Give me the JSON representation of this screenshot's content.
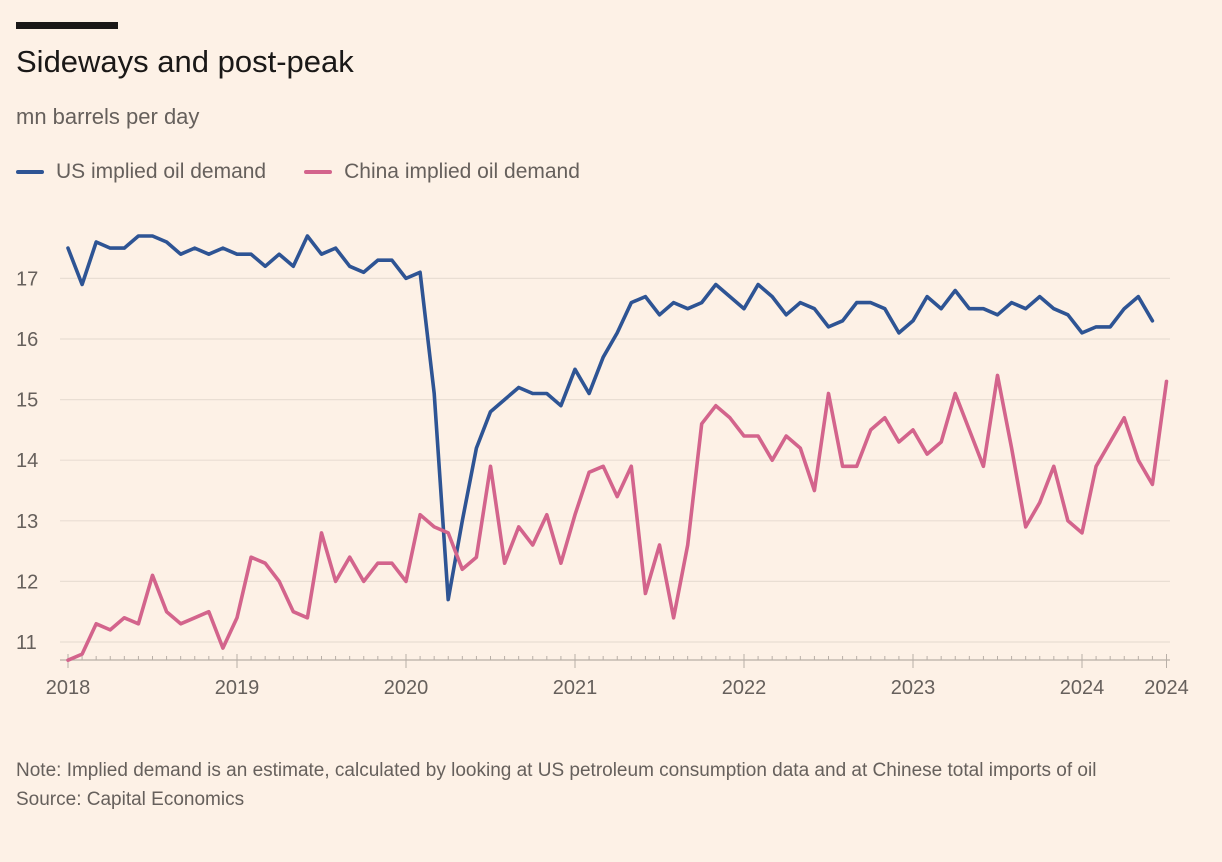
{
  "title": "Sideways and post-peak",
  "subtitle": "mn barrels per day",
  "legend": [
    {
      "name": "US implied oil demand",
      "color": "#2E5494"
    },
    {
      "name": "China implied oil demand",
      "color": "#D3648C"
    }
  ],
  "note": "Note: Implied demand is an estimate, calculated by looking at US petroleum consumption data and at Chinese total imports of oil",
  "source": "Source: Capital Economics",
  "chart_data": {
    "type": "line",
    "x_start": "2018-01",
    "x_frequency": "monthly",
    "x_ticks": [
      "2018",
      "2019",
      "2020",
      "2021",
      "2022",
      "2023",
      "2024",
      "2024"
    ],
    "y_ticks": [
      "11",
      "12",
      "13",
      "14",
      "15",
      "16",
      "17"
    ],
    "ylim": [
      10.7,
      17.9
    ],
    "grid": true,
    "legend_position": "top-left",
    "series": [
      {
        "name": "US implied oil demand",
        "color": "#2E5494",
        "values": [
          17.5,
          16.9,
          17.6,
          17.5,
          17.5,
          17.7,
          17.7,
          17.6,
          17.4,
          17.5,
          17.4,
          17.5,
          17.4,
          17.4,
          17.2,
          17.4,
          17.2,
          17.7,
          17.4,
          17.5,
          17.2,
          17.1,
          17.3,
          17.3,
          17.0,
          17.1,
          15.1,
          11.7,
          13.0,
          14.2,
          14.8,
          15.0,
          15.2,
          15.1,
          15.1,
          14.9,
          15.5,
          15.1,
          15.7,
          16.1,
          16.6,
          16.7,
          16.4,
          16.6,
          16.5,
          16.6,
          16.9,
          16.7,
          16.5,
          16.9,
          16.7,
          16.4,
          16.6,
          16.5,
          16.2,
          16.3,
          16.6,
          16.6,
          16.5,
          16.1,
          16.3,
          16.7,
          16.5,
          16.8,
          16.5,
          16.5,
          16.4,
          16.6,
          16.5,
          16.7,
          16.5,
          16.4,
          16.1,
          16.2,
          16.2,
          16.5,
          16.7,
          16.3
        ]
      },
      {
        "name": "China implied oil demand",
        "color": "#D3648C",
        "values": [
          10.7,
          10.8,
          11.3,
          11.2,
          11.4,
          11.3,
          12.1,
          11.5,
          11.3,
          11.4,
          11.5,
          10.9,
          11.4,
          12.4,
          12.3,
          12.0,
          11.5,
          11.4,
          12.8,
          12.0,
          12.4,
          12.0,
          12.3,
          12.3,
          12.0,
          13.1,
          12.9,
          12.8,
          12.2,
          12.4,
          13.9,
          12.3,
          12.9,
          12.6,
          13.1,
          12.3,
          13.1,
          13.8,
          13.9,
          13.4,
          13.9,
          11.8,
          12.6,
          11.4,
          12.6,
          14.6,
          14.9,
          14.7,
          14.4,
          14.4,
          14.0,
          14.4,
          14.2,
          13.5,
          15.1,
          13.9,
          13.9,
          14.5,
          14.7,
          14.3,
          14.5,
          14.1,
          14.3,
          15.1,
          14.5,
          13.9,
          15.4,
          14.2,
          12.9,
          13.3,
          13.9,
          13.0,
          12.8,
          13.9,
          14.3,
          14.7,
          14.0,
          13.6,
          15.3
        ]
      }
    ]
  }
}
